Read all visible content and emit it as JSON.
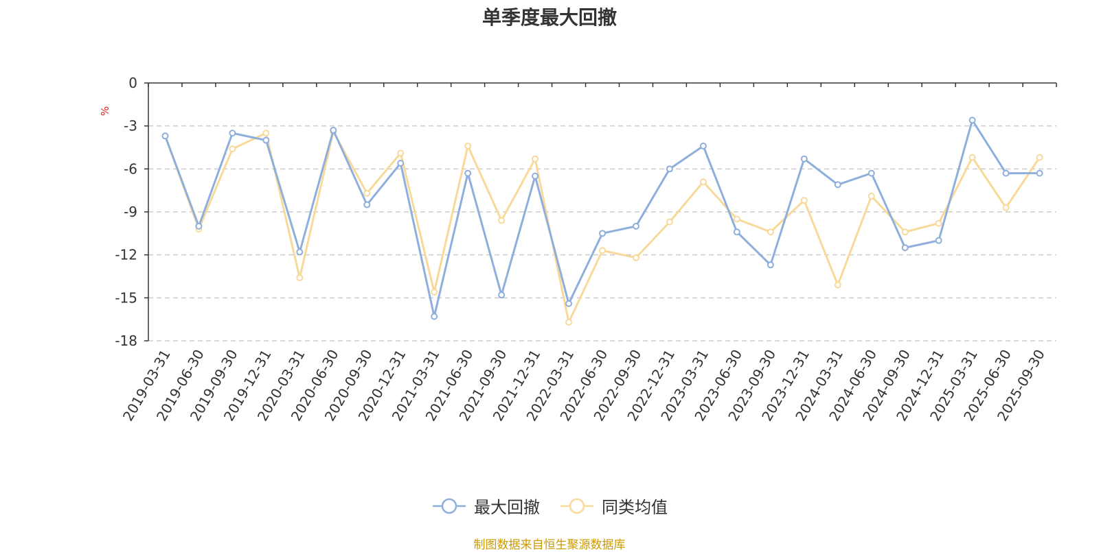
{
  "title": "单季度最大回撤",
  "source": "制图数据来自恒生聚源数据库",
  "chart_data": {
    "type": "line",
    "title": "单季度最大回撤",
    "ylabel": "%",
    "ylim": [
      -18,
      0
    ],
    "yticks": [
      0,
      -3,
      -6,
      -9,
      -12,
      -15,
      -18
    ],
    "grid": true,
    "legend_position": "bottom",
    "x": [
      "2019-03-31",
      "2019-06-30",
      "2019-09-30",
      "2019-12-31",
      "2020-03-31",
      "2020-06-30",
      "2020-09-30",
      "2020-12-31",
      "2021-03-31",
      "2021-06-30",
      "2021-09-30",
      "2021-12-31",
      "2022-03-31",
      "2022-06-30",
      "2022-09-30",
      "2022-12-31",
      "2023-03-31",
      "2023-06-30",
      "2023-09-30",
      "2023-12-31",
      "2024-03-31",
      "2024-06-30",
      "2024-09-30",
      "2024-12-31",
      "2025-03-31",
      "2025-06-30",
      "2025-09-30"
    ],
    "series": [
      {
        "name": "最大回撤",
        "color": "#8eaedb",
        "values": [
          -3.7,
          -10.0,
          -3.5,
          -4.0,
          -11.8,
          -3.3,
          -8.5,
          -5.6,
          -16.3,
          -6.3,
          -14.8,
          -6.5,
          -15.4,
          -10.5,
          -10.0,
          -6.0,
          -4.4,
          -10.4,
          -12.7,
          -5.3,
          -7.1,
          -6.3,
          -11.5,
          -11.0,
          -2.6,
          -6.3,
          -6.3
        ]
      },
      {
        "name": "同类均值",
        "color": "#f9d99a",
        "values": [
          -3.7,
          -10.2,
          -4.6,
          -3.5,
          -13.6,
          -3.4,
          -7.7,
          -4.9,
          -14.6,
          -4.4,
          -9.6,
          -5.3,
          -16.7,
          -11.7,
          -12.2,
          -9.7,
          -6.9,
          -9.5,
          -10.4,
          -8.2,
          -14.1,
          -7.9,
          -10.4,
          -9.8,
          -5.2,
          -8.7,
          -5.2
        ]
      }
    ]
  }
}
